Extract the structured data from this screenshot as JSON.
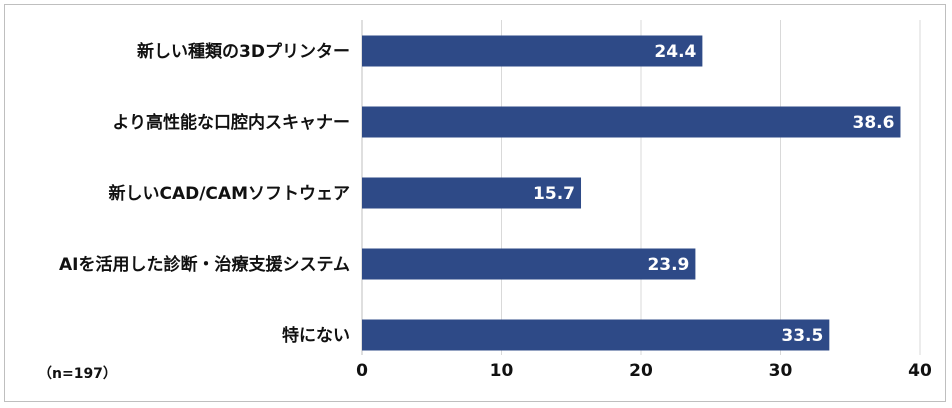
{
  "note": "（n=197）",
  "chart_data": {
    "type": "bar",
    "orientation": "horizontal",
    "categories": [
      "新しい種類の3Dプリンター",
      "より高性能な口腔内スキャナー",
      "新しいCAD/CAMソフトウェア",
      "AIを活用した診断・治療支援システム",
      "特にない"
    ],
    "values": [
      24.4,
      38.6,
      15.7,
      23.9,
      33.5
    ],
    "xlim": [
      0,
      40
    ],
    "xticks": [
      0,
      10,
      20,
      30,
      40
    ],
    "grid": true,
    "bar_color": "#2e4a87",
    "grid_color": "#d9d9d9",
    "title": "",
    "xlabel": "",
    "ylabel": ""
  }
}
